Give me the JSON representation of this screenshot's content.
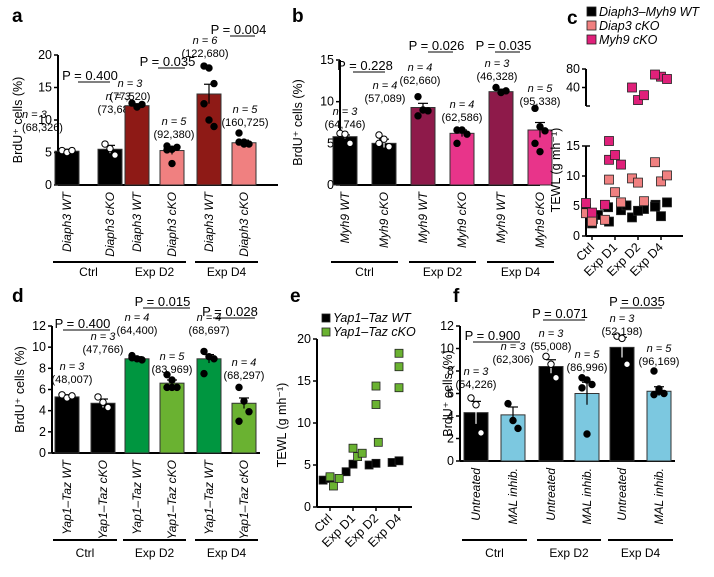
{
  "figure": {
    "panels": [
      "a",
      "b",
      "c",
      "d",
      "e",
      "f"
    ]
  },
  "chart_data": [
    {
      "panel": "a",
      "type": "bar",
      "ylabel": "BrdU⁺ cells (%)",
      "ylim": [
        0,
        20
      ],
      "yticks": [
        0,
        5,
        10,
        15,
        20
      ],
      "categories": [
        "Diaph3 WT",
        "Diaph3 cKO",
        "Diaph3 WT",
        "Diaph3 cKO",
        "Diaph3 WT",
        "Diaph3 cKO"
      ],
      "groups": [
        "Ctrl",
        "Exp D2",
        "Exp D4"
      ],
      "values": [
        5.2,
        5.5,
        12.2,
        5.3,
        14.0,
        6.5
      ],
      "errors": [
        0.3,
        0.6,
        0.3,
        0.6,
        1.5,
        0.4
      ],
      "bar_colors": [
        "#000000",
        "#000000",
        "#8e1a16",
        "#f08080",
        "#8e1a16",
        "#f08080"
      ],
      "dot_fill": [
        "#ffffff",
        "#ffffff",
        "#000000",
        "#000000",
        "#000000",
        "#000000"
      ],
      "points": [
        [
          5.3,
          5.0,
          5.3
        ],
        [
          6.3,
          5.6,
          4.6
        ],
        [
          12.6,
          12.0,
          12.4
        ],
        [
          6.0,
          5.5,
          5.8,
          5.4,
          3.3
        ],
        [
          18.3,
          18.0,
          15.6,
          12.5,
          10.0,
          9.0
        ],
        [
          8.0,
          6.6,
          6.3,
          6.6,
          6.3
        ]
      ],
      "n_labels": [
        "n = 3",
        "n = 3",
        "n = 3",
        "n = 5",
        "n = 6",
        "n = 5"
      ],
      "count_labels": [
        "(68,326)",
        "(73,682)",
        "(77,520)",
        "(92,380)",
        "(122,680)",
        "(160,725)"
      ],
      "p_values": [
        "P = 0.400",
        "P = 0.035",
        "P = 0.004"
      ]
    },
    {
      "panel": "b",
      "type": "bar",
      "ylabel": "BrdU⁺ cells (%)",
      "ylim": [
        0,
        15
      ],
      "yticks": [
        0,
        5,
        10,
        15
      ],
      "categories": [
        "Myh9 WT",
        "Myh9 cKO",
        "Myh9 WT",
        "Myh9 cKO",
        "Myh9 WT",
        "Myh9 cKO"
      ],
      "groups": [
        "Ctrl",
        "Exp D2",
        "Exp D4"
      ],
      "values": [
        5.8,
        5.0,
        9.3,
        6.2,
        11.2,
        6.6
      ],
      "errors": [
        0.2,
        0.5,
        0.5,
        0.4,
        0.3,
        0.9
      ],
      "bar_colors": [
        "#000000",
        "#000000",
        "#8e1a4a",
        "#e8348a",
        "#8e1a4a",
        "#e8348a"
      ],
      "dot_fill": [
        "#ffffff",
        "#ffffff",
        "#000000",
        "#000000",
        "#000000",
        "#000000"
      ],
      "points": [
        [
          6.2,
          6.1,
          5.0
        ],
        [
          6.0,
          5.5,
          4.6,
          5.0
        ],
        [
          10.6,
          9.0,
          8.9,
          8.3
        ],
        [
          6.6,
          6.6,
          6.1,
          5.0
        ],
        [
          11.7,
          11.1,
          11.3
        ],
        [
          9.2,
          7.0,
          6.5,
          5.0,
          4.0
        ]
      ],
      "n_labels": [
        "n = 3",
        "n = 4",
        "n = 4",
        "n = 4",
        "n = 3",
        "n = 5"
      ],
      "count_labels": [
        "(64,746)",
        "(57,089)",
        "(62,660)",
        "(62,586)",
        "(46,328)",
        "(95,338)"
      ],
      "p_values": [
        "P = 0.228",
        "P = 0.026",
        "P = 0.035"
      ]
    },
    {
      "panel": "c",
      "type": "scatter",
      "ylabel": "TEWL (g mh⁻¹)",
      "yticks_lower": [
        0,
        5,
        10,
        15
      ],
      "yticks_upper": [
        40,
        80
      ],
      "xticks": [
        "Ctrl",
        "Exp D1",
        "Exp D2",
        "Exp D4"
      ],
      "legend": [
        "Diaph3–Myh9 WT",
        "Diap3 cKO",
        "Myh9 cKO"
      ],
      "legend_position": "top-right",
      "series": [
        {
          "name": "Diaph3–Myh9 WT",
          "color": "#000000",
          "points": [
            [
              0,
              4.6
            ],
            [
              0,
              2.1
            ],
            [
              0,
              3.5
            ],
            [
              0.3,
              2.8
            ],
            [
              0.7,
              4.8
            ],
            [
              1,
              4.3
            ],
            [
              1,
              2.4
            ],
            [
              1.5,
              5.1
            ],
            [
              2,
              4.5
            ],
            [
              2,
              3.1
            ],
            [
              2,
              4.2
            ],
            [
              2.5,
              5.2
            ],
            [
              3,
              4.9
            ],
            [
              3,
              3.3
            ],
            [
              3,
              5.6
            ]
          ]
        },
        {
          "name": "Diap3 cKO",
          "color": "#f08080",
          "points": [
            [
              0,
              3.8
            ],
            [
              0,
              2.4
            ],
            [
              0.3,
              2.7
            ],
            [
              1,
              9.4
            ],
            [
              1,
              7.3
            ],
            [
              1,
              5.6
            ],
            [
              2,
              9.6
            ],
            [
              2,
              8.9
            ],
            [
              2,
              5.8
            ],
            [
              3,
              12.3
            ],
            [
              3,
              9.1
            ],
            [
              3,
              10.1
            ]
          ]
        },
        {
          "name": "Myh9 cKO",
          "color": "#e0207a",
          "points": [
            [
              0,
              5.5
            ],
            [
              0,
              3.9
            ],
            [
              0.3,
              5.2
            ],
            [
              1,
              12.7
            ],
            [
              1,
              13.5
            ],
            [
              1,
              11.9
            ],
            [
              1,
              18.0
            ],
            [
              2,
              25
            ],
            [
              2,
              30
            ],
            [
              2,
              40
            ],
            [
              3,
              60
            ],
            [
              3,
              55
            ],
            [
              3,
              65
            ]
          ]
        }
      ]
    },
    {
      "panel": "d",
      "type": "bar",
      "ylabel": "BrdU⁺ cells (%)",
      "ylim": [
        0,
        12
      ],
      "yticks": [
        0,
        2,
        4,
        6,
        8,
        10,
        12
      ],
      "categories": [
        "Yap1–Taz WT",
        "Yap1–Taz cKO",
        "Yap1–Taz WT",
        "Yap1–Taz cKO",
        "Yap1–Taz WT",
        "Yap1–Taz cKO"
      ],
      "groups": [
        "Ctrl",
        "Exp D2",
        "Exp D4"
      ],
      "values": [
        5.3,
        4.7,
        8.9,
        6.6,
        8.9,
        4.7
      ],
      "errors": [
        0.2,
        0.4,
        0.2,
        0.3,
        0.4,
        0.5
      ],
      "bar_colors": [
        "#000000",
        "#000000",
        "#009640",
        "#6ab231",
        "#009640",
        "#6ab231"
      ],
      "dot_fill": [
        "#ffffff",
        "#ffffff",
        "#000000",
        "#000000",
        "#000000",
        "#000000"
      ],
      "points": [
        [
          5.5,
          5.2,
          5.4
        ],
        [
          5.3,
          4.8,
          4.3
        ],
        [
          9.2,
          8.9,
          8.8,
          9.0
        ],
        [
          7.4,
          6.9,
          6.2,
          6.2,
          6.2
        ],
        [
          9.6,
          9.1,
          8.9,
          7.5
        ],
        [
          6.2,
          4.9,
          3.9,
          3.0
        ]
      ],
      "n_labels": [
        "n = 3",
        "n = 3",
        "n = 4",
        "n = 5",
        "n = 4",
        "n = 4"
      ],
      "count_labels": [
        "(48,007)",
        "(47,766)",
        "(64,400)",
        "(83,969)",
        "(68,697)",
        "(68,297)"
      ],
      "p_values": [
        "P = 0.400",
        "P = 0.015",
        "P = 0.028"
      ]
    },
    {
      "panel": "e",
      "type": "scatter",
      "ylabel": "TEWL (g mh⁻¹)",
      "ylim": [
        0,
        20
      ],
      "yticks": [
        0,
        5,
        10,
        15,
        20
      ],
      "xticks": [
        "Ctrl",
        "Exp D1",
        "Exp D2",
        "Exp D4"
      ],
      "legend": [
        "Yap1–Taz WT",
        "Yap1–Taz cKO"
      ],
      "legend_position": "top-left",
      "series": [
        {
          "name": "Yap1–Taz WT",
          "color": "#000000",
          "points": [
            [
              -0.3,
              3.2
            ],
            [
              0,
              3.4
            ],
            [
              0.7,
              4.2
            ],
            [
              1,
              5.1
            ],
            [
              1.7,
              5.0
            ],
            [
              2,
              5.2
            ],
            [
              2.7,
              5.3
            ],
            [
              3,
              5.5
            ]
          ]
        },
        {
          "name": "Yap1–Taz cKO",
          "color": "#6ab231",
          "points": [
            [
              0,
              3.6
            ],
            [
              0.15,
              2.5
            ],
            [
              0.4,
              3.4
            ],
            [
              1,
              7.0
            ],
            [
              1.2,
              6.0
            ],
            [
              1.4,
              6.4
            ],
            [
              2,
              14.4
            ],
            [
              2,
              12.2
            ],
            [
              2.1,
              7.7
            ],
            [
              3,
              18.3
            ],
            [
              3,
              16.7
            ],
            [
              3,
              14.2
            ]
          ]
        }
      ]
    },
    {
      "panel": "f",
      "type": "bar",
      "ylabel": "BrdU⁺ cells (%)",
      "ylim": [
        0,
        12
      ],
      "yticks": [
        0,
        2,
        4,
        6,
        8,
        10,
        12
      ],
      "categories": [
        "Untreated",
        "MAL inhib.",
        "Untreated",
        "MAL inhib.",
        "Untreated",
        "MAL inhib."
      ],
      "groups": [
        "Ctrl",
        "Exp D2",
        "Exp D4"
      ],
      "values": [
        4.3,
        4.1,
        8.4,
        6.0,
        10.1,
        6.2
      ],
      "errors": [
        1.0,
        0.7,
        0.6,
        1.0,
        0.9,
        0.4
      ],
      "bar_colors": [
        "#000000",
        "#7cc8e0",
        "#000000",
        "#7cc8e0",
        "#000000",
        "#7cc8e0"
      ],
      "dot_fill": [
        "#ffffff",
        "#000000",
        "#ffffff",
        "#000000",
        "#ffffff",
        "#000000"
      ],
      "points": [
        [
          5.6,
          5.0,
          2.5
        ],
        [
          5.1,
          3.6,
          2.9
        ],
        [
          9.3,
          8.6,
          7.4
        ],
        [
          7.4,
          7.2,
          6.8,
          6.5,
          2.4
        ],
        [
          11.1,
          10.9,
          8.6
        ],
        [
          8.0,
          6.4,
          6.0,
          5.9,
          6.2
        ]
      ],
      "n_labels": [
        "n = 3",
        "n = 3",
        "n = 3",
        "n = 5",
        "n = 3",
        "n = 5"
      ],
      "count_labels": [
        "(54,226)",
        "(62,306)",
        "(55,008)",
        "(86,996)",
        "(52,198)",
        "(96,169)"
      ],
      "p_values": [
        "P = 0.900",
        "P = 0.071",
        "P = 0.035"
      ]
    }
  ]
}
